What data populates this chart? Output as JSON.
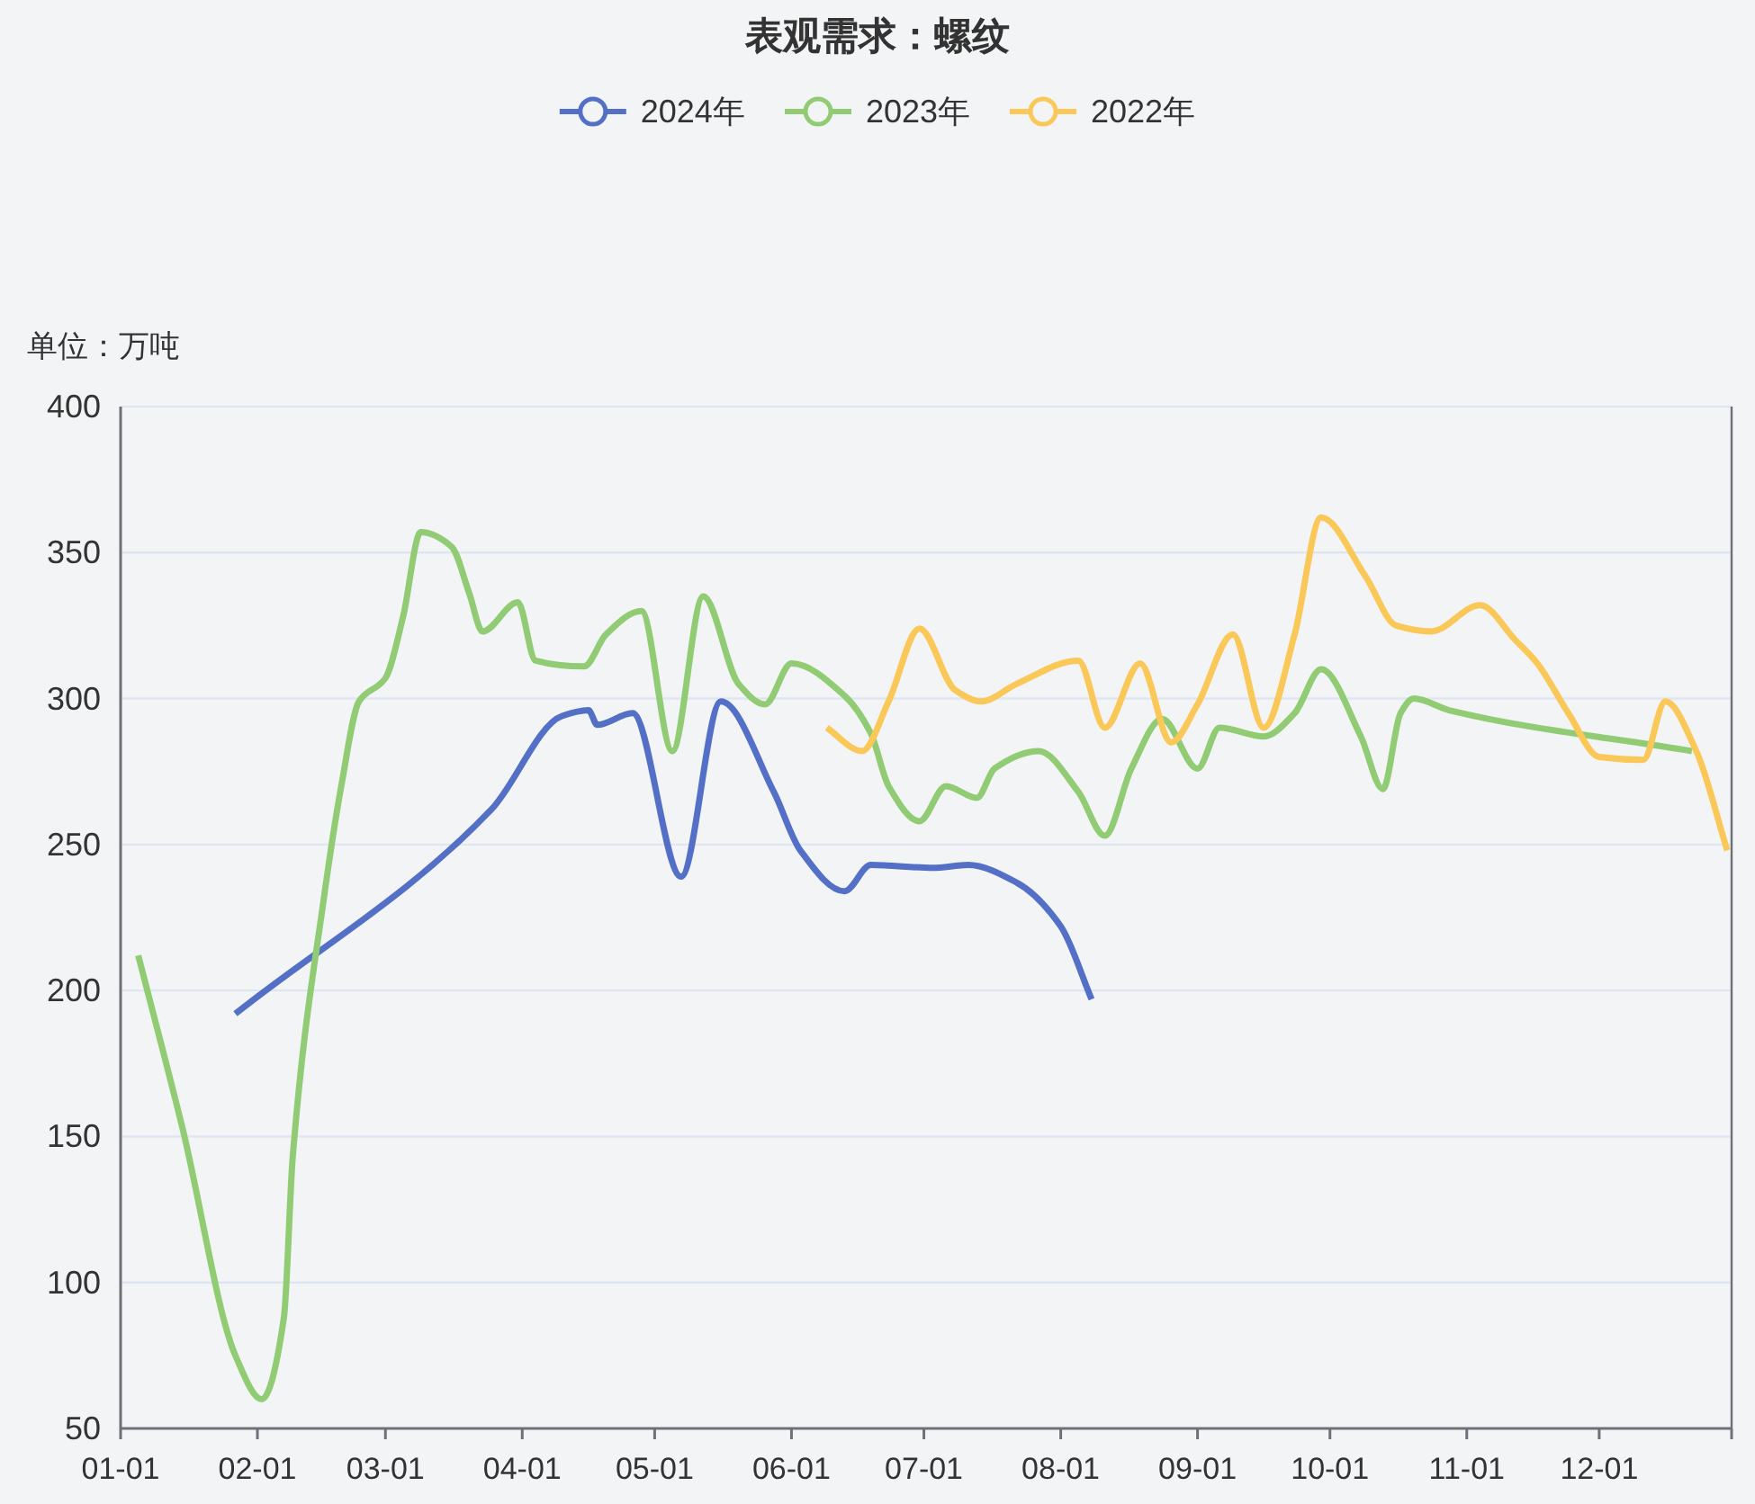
{
  "chart_data": {
    "type": "line",
    "title": "表观需求：螺纹",
    "ylabel": "单位：万吨",
    "legend": "top",
    "grid": "y",
    "xlim": [
      "--01-01",
      "--12-31"
    ],
    "ylim": [
      50,
      400
    ],
    "yticks": [
      50,
      100,
      150,
      200,
      250,
      300,
      350,
      400
    ],
    "xticks": [
      {
        "value": "--01-01",
        "label": "01-01"
      },
      {
        "value": "--02-01",
        "label": "02-01"
      },
      {
        "value": "--03-01",
        "label": "03-01"
      },
      {
        "value": "--04-01",
        "label": "04-01"
      },
      {
        "value": "--05-01",
        "label": "05-01"
      },
      {
        "value": "--06-01",
        "label": "06-01"
      },
      {
        "value": "--07-01",
        "label": "07-01"
      },
      {
        "value": "--08-01",
        "label": "08-01"
      },
      {
        "value": "--09-01",
        "label": "09-01"
      },
      {
        "value": "--10-01",
        "label": "10-01"
      },
      {
        "value": "--11-01",
        "label": "11-01"
      },
      {
        "value": "--12-01",
        "label": "12-01"
      },
      {
        "value": "--12-31",
        "label": null
      }
    ],
    "series": [
      {
        "name": "2024年",
        "color": "#5470c6",
        "x": [
          "--01-27",
          "--03-25",
          "--04-10",
          "--04-16",
          "--04-18",
          "--04-26",
          "--05-07",
          "--05-16",
          "--05-28",
          "--06-03",
          "--06-13",
          "--06-19",
          "--07-03",
          "--07-11",
          "--07-22",
          "--08-01",
          "--08-08"
        ],
        "values": [
          192,
          262,
          294,
          296,
          291,
          295,
          239,
          299,
          268,
          248,
          234,
          243,
          242,
          243,
          237,
          222,
          197
        ]
      },
      {
        "name": "2023年",
        "color": "#91cc75",
        "x": [
          "--01-05",
          "--01-15",
          "--01-27",
          "--02-02",
          "--02-07",
          "--02-09",
          "--02-16",
          "--02-20",
          "--02-24",
          "--03-01",
          "--03-05",
          "--03-09",
          "--03-16",
          "--03-20",
          "--03-23",
          "--03-31",
          "--04-04",
          "--04-15",
          "--04-20",
          "--04-28",
          "--05-05",
          "--05-12",
          "--05-20",
          "--05-26",
          "--06-01",
          "--06-13",
          "--06-19",
          "--06-23",
          "--06-30",
          "--07-06",
          "--07-13",
          "--07-17",
          "--07-27",
          "--08-05",
          "--08-11",
          "--08-17",
          "--08-24",
          "--09-01",
          "--09-06",
          "--09-16",
          "--09-23",
          "--09-29",
          "--10-08",
          "--10-13",
          "--10-17",
          "--10-20",
          "--10-28",
          "--12-22"
        ],
        "values": [
          212,
          153,
          75,
          60,
          88,
          143,
          231,
          270,
          299,
          307,
          328,
          357,
          352,
          336,
          323,
          333,
          313,
          311,
          322,
          330,
          282,
          335,
          305,
          298,
          312,
          301,
          288,
          270,
          258,
          270,
          266,
          276,
          282,
          268,
          253,
          276,
          293,
          276,
          290,
          287,
          295,
          310,
          287,
          269,
          295,
          300,
          296,
          282
        ]
      },
      {
        "name": "2022年",
        "color": "#fac858",
        "x": [
          "--06-09",
          "--06-17",
          "--06-23",
          "--06-30",
          "--07-08",
          "--07-14",
          "--07-22",
          "--08-05",
          "--08-11",
          "--08-19",
          "--08-26",
          "--09-01",
          "--09-09",
          "--09-16",
          "--09-23",
          "--09-29",
          "--10-09",
          "--10-16",
          "--10-24",
          "--11-04",
          "--11-12",
          "--11-17",
          "--11-24",
          "--12-01",
          "--12-11",
          "--12-16",
          "--12-23",
          "--12-30"
        ],
        "values": [
          290,
          282,
          299,
          324,
          303,
          299,
          305,
          313,
          290,
          312,
          285,
          298,
          322,
          290,
          322,
          362,
          342,
          325,
          323,
          332,
          320,
          312,
          295,
          280,
          279,
          299,
          282,
          248
        ]
      }
    ]
  }
}
